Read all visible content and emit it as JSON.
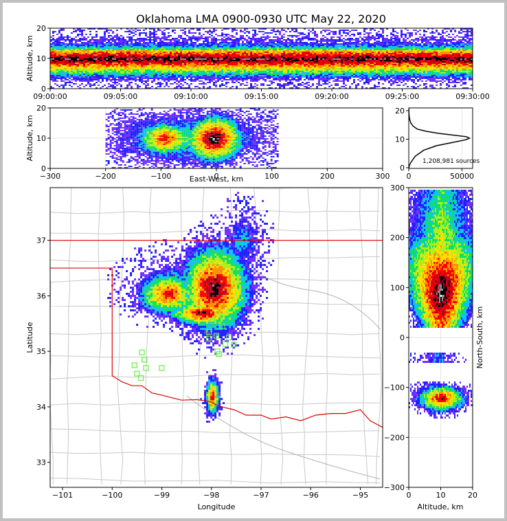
{
  "chart_data": {
    "title": "Oklahoma LMA 0900-0930 UTC May 22, 2020",
    "colors": {
      "county": "#c8c8c8",
      "state": "#dd0000",
      "station": "#66ee44"
    },
    "time_height": {
      "type": "heatmap",
      "ylabel": "Altitude, km",
      "ylim": [
        0,
        20
      ],
      "yticks": [
        "0",
        "10",
        "20"
      ],
      "xticks": [
        "09:00:00",
        "09:05:00",
        "09:10:00",
        "09:15:00",
        "09:20:00",
        "09:25:00",
        "09:30:00"
      ]
    },
    "ew_alt": {
      "type": "heatmap",
      "xlabel": "East-West, km",
      "ylabel": "Altitude, km",
      "xlim": [
        -300,
        300
      ],
      "ylim": [
        0,
        20
      ],
      "xticks": [
        "−300",
        "−200",
        "−100",
        "0",
        "100",
        "200",
        "300"
      ],
      "yticks": [
        "0",
        "10",
        "20"
      ]
    },
    "histogram": {
      "type": "line",
      "xlim": [
        0,
        60000
      ],
      "ylim": [
        0,
        20
      ],
      "xticks": [
        "0",
        "50000"
      ],
      "yticks": [
        "0",
        "10",
        "20"
      ],
      "annotation": "1,208,981 sources",
      "profile": [
        [
          0,
          0
        ],
        [
          600,
          1
        ],
        [
          2000,
          2
        ],
        [
          6000,
          4
        ],
        [
          14000,
          6
        ],
        [
          26000,
          7.5
        ],
        [
          40000,
          8.5
        ],
        [
          54000,
          9.5
        ],
        [
          57000,
          10
        ],
        [
          54000,
          10.5
        ],
        [
          42000,
          11
        ],
        [
          28000,
          11.6
        ],
        [
          16000,
          12.3
        ],
        [
          8000,
          13
        ],
        [
          4000,
          14
        ],
        [
          2000,
          15
        ],
        [
          1000,
          16
        ],
        [
          500,
          17
        ],
        [
          200,
          18
        ],
        [
          50,
          20
        ]
      ]
    },
    "plan": {
      "type": "heatmap",
      "xlabel": "Longitude",
      "ylabel": "Latitude",
      "xlim": [
        -101.25,
        -94.55
      ],
      "ylim": [
        32.55,
        37.95
      ],
      "xticks": [
        "−101",
        "−100",
        "−99",
        "−98",
        "−97",
        "−96",
        "−95"
      ],
      "yticks": [
        "33",
        "34",
        "35",
        "36",
        "37"
      ],
      "stations": [
        [
          -97.98,
          35.55
        ],
        [
          -98.05,
          35.35
        ],
        [
          -98.05,
          35.23
        ],
        [
          -97.9,
          35.28
        ],
        [
          -97.78,
          35.45
        ],
        [
          -97.65,
          35.25
        ],
        [
          -97.55,
          35.12
        ],
        [
          -97.72,
          35.13
        ],
        [
          -97.88,
          35.0
        ],
        [
          -97.85,
          34.95
        ],
        [
          -99.4,
          34.98
        ],
        [
          -99.35,
          34.85
        ],
        [
          -99.55,
          34.75
        ],
        [
          -99.32,
          34.7
        ],
        [
          -99.5,
          34.6
        ],
        [
          -99.42,
          34.52
        ],
        [
          -99.0,
          34.7
        ]
      ]
    },
    "ns_alt": {
      "type": "heatmap",
      "xlabel": "Altitude, km",
      "ylabel": "North-South, km",
      "xlim": [
        0,
        20
      ],
      "ylim": [
        -300,
        300
      ],
      "xticks": [
        "0",
        "10",
        "20"
      ],
      "yticks": [
        "−300",
        "−200",
        "−100",
        "0",
        "100",
        "200",
        "300"
      ]
    }
  }
}
